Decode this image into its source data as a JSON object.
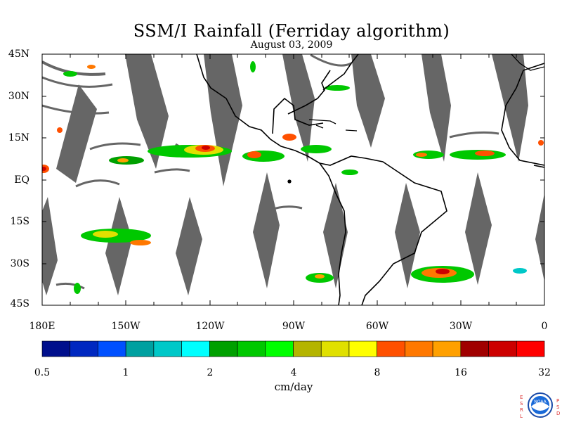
{
  "title": "SSM/I Rainfall (Ferriday algorithm)",
  "subtitle": "August 03, 2009",
  "lat_labels": [
    "45N",
    "30N",
    "15N",
    "EQ",
    "15S",
    "30S",
    "45S"
  ],
  "lon_labels": [
    "180E",
    "150W",
    "120W",
    "90W",
    "60W",
    "30W",
    "0"
  ],
  "colorbar": {
    "colors": [
      "#000f8c",
      "#0028c0",
      "#0050ff",
      "#00a0a0",
      "#00c8c8",
      "#00ffff",
      "#00a000",
      "#00c800",
      "#00ff00",
      "#b4b400",
      "#e0e000",
      "#ffff00",
      "#ff5000",
      "#ff7800",
      "#ffa000",
      "#a00000",
      "#cc0000",
      "#ff0000"
    ],
    "tick_labels": [
      "0.5",
      "1",
      "2",
      "4",
      "8",
      "16",
      "32"
    ],
    "units": "cm/day"
  },
  "logo": {
    "left_letters": [
      "E",
      "S",
      "R",
      "L"
    ],
    "right_letters": [
      "P",
      "S",
      "D"
    ],
    "text": "NOAA"
  }
}
